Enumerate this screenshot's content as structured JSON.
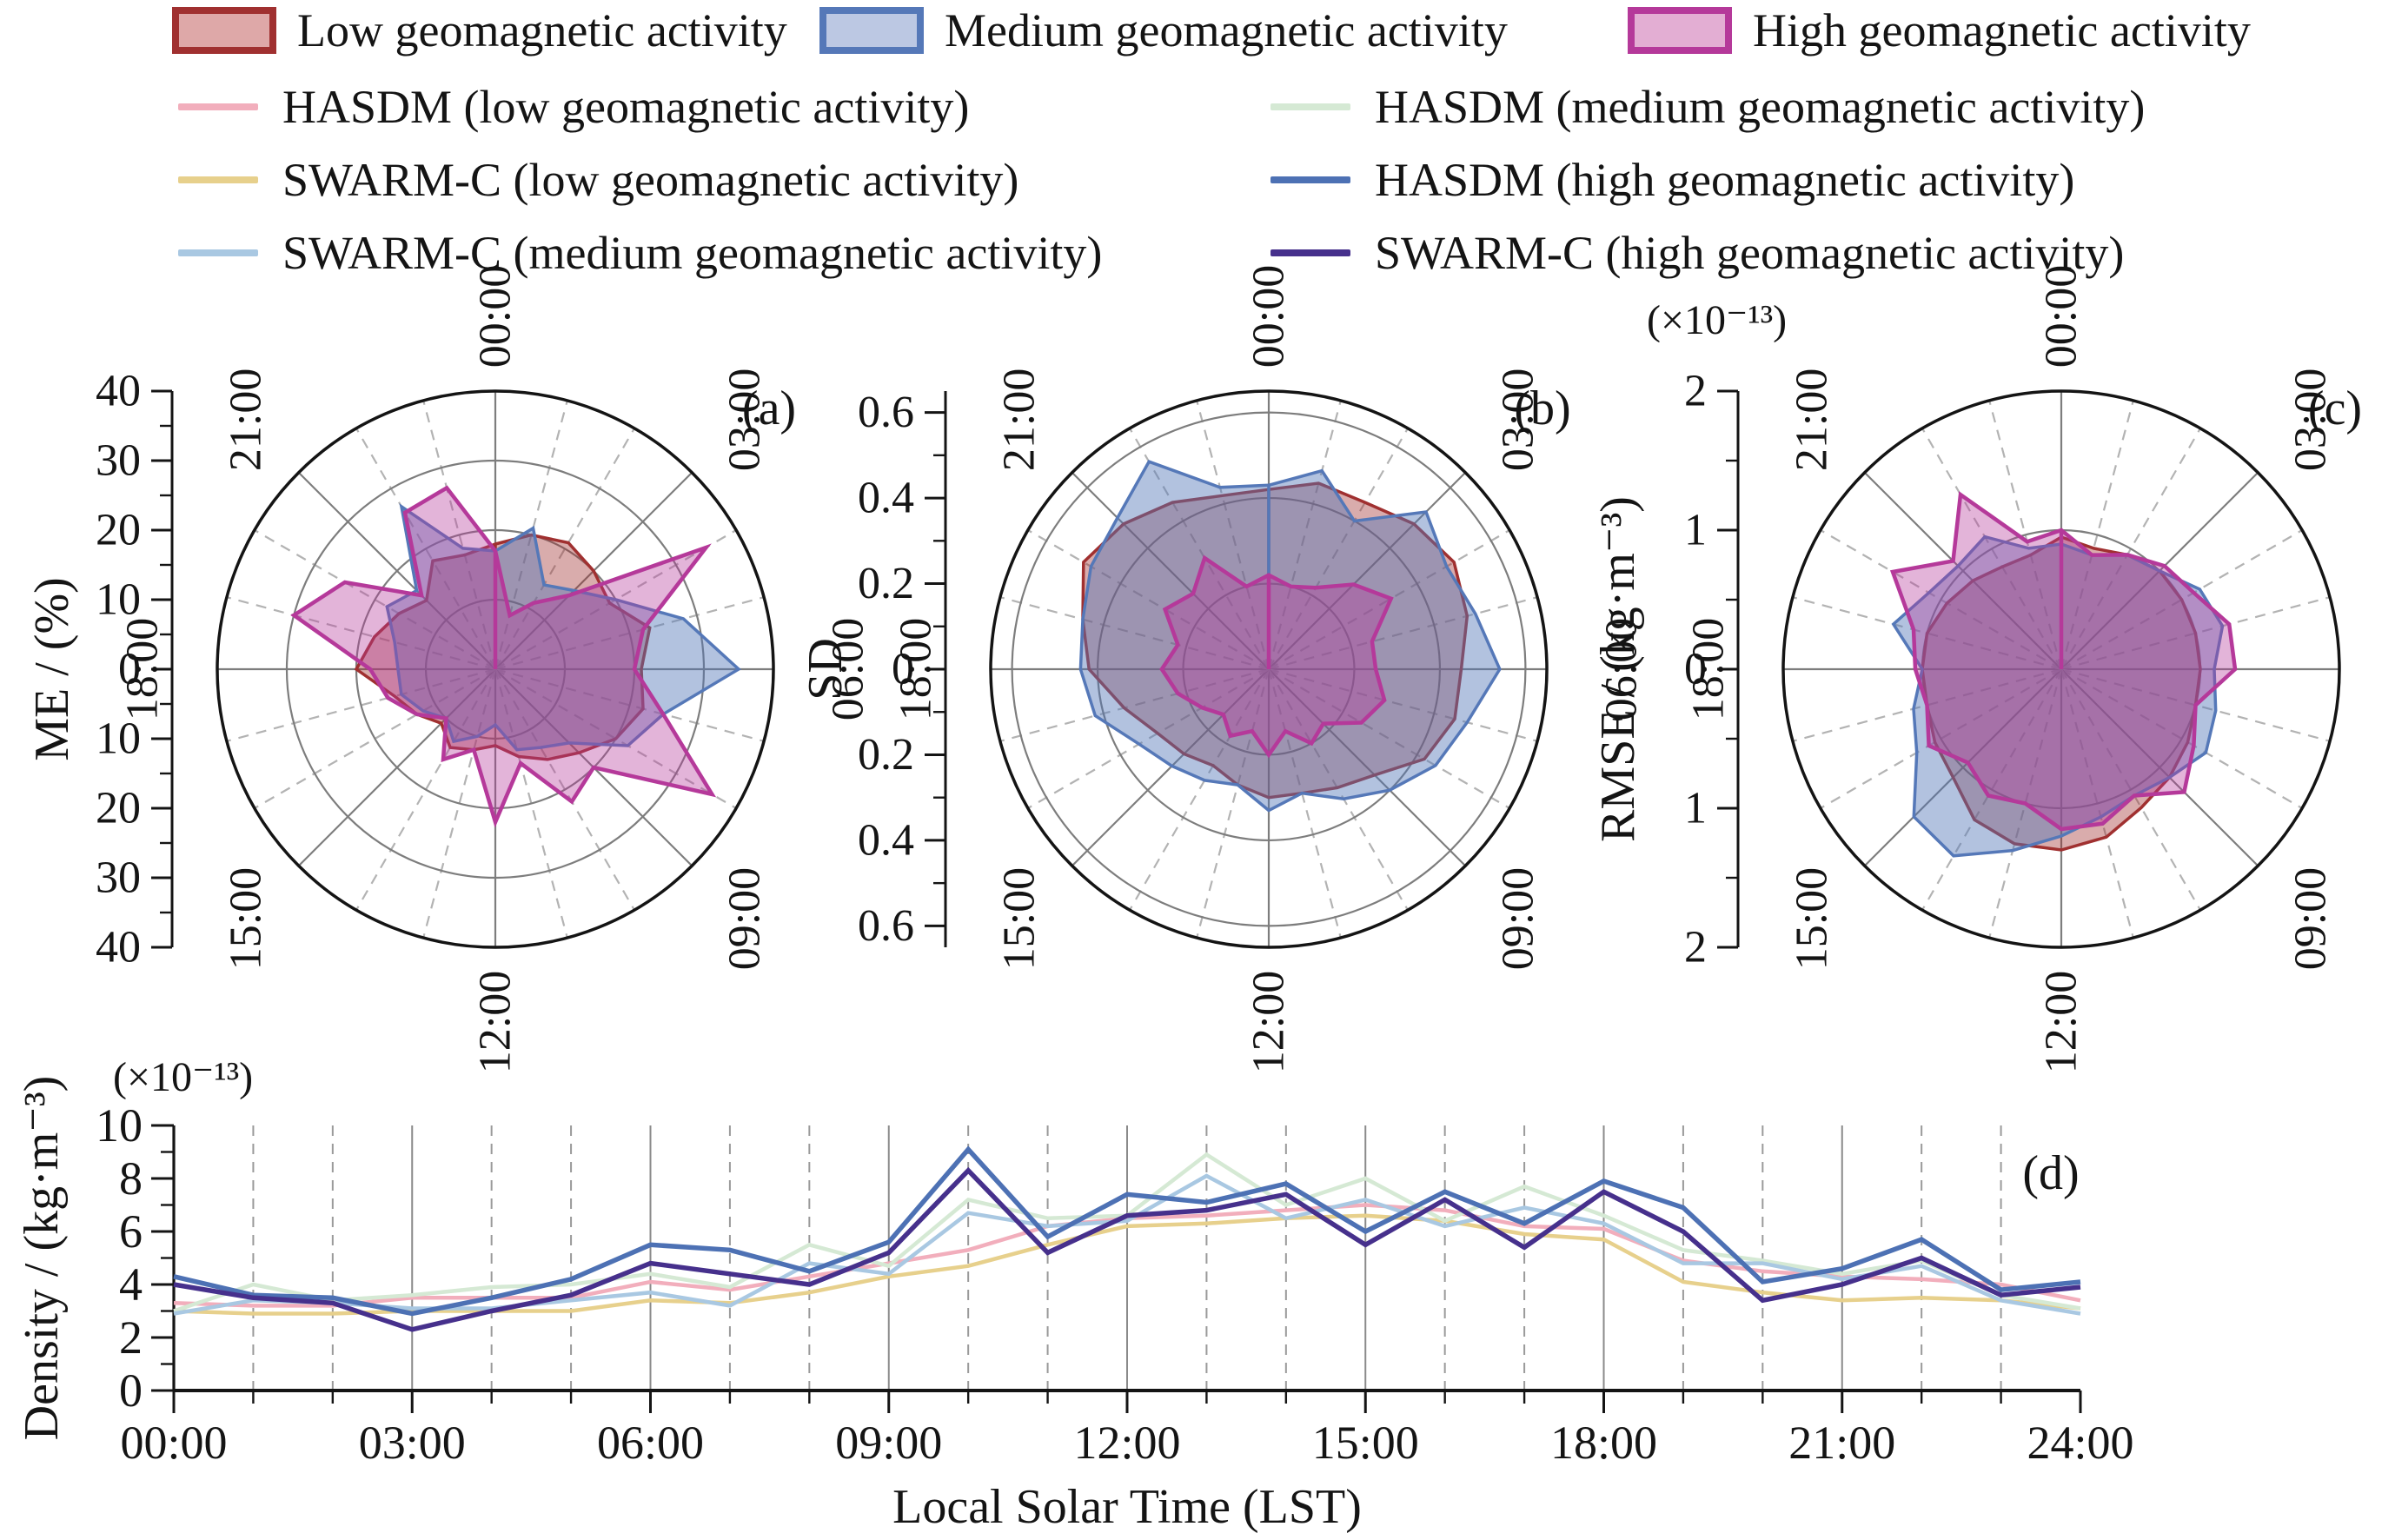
{
  "legend": {
    "patches": [
      {
        "label": "Low geomagnetic activity",
        "stroke": "#a03030",
        "fill": "#dea8a8"
      },
      {
        "label": "Medium geomagnetic activity",
        "stroke": "#5578b8",
        "fill": "#bcc8e3"
      },
      {
        "label": "High geomagnetic activity",
        "stroke": "#b5399a",
        "fill": "#e3aed3"
      }
    ],
    "lines": [
      {
        "label": "HASDM (low geomagnetic activity)",
        "color": "#f2aebc"
      },
      {
        "label": "HASDM (medium geomagnetic activity)",
        "color": "#d5e9d4"
      },
      {
        "label": "SWARM-C (low geomagnetic activity)",
        "color": "#e7d08c"
      },
      {
        "label": "HASDM (high geomagnetic activity)",
        "color": "#4d71b4"
      },
      {
        "label": "SWARM-C (medium geomagnetic activity)",
        "color": "#a9c8e2"
      },
      {
        "label": "SWARM-C (high geomagnetic activity)",
        "color": "#46308c"
      }
    ]
  },
  "chart_data": [
    {
      "id": "a",
      "type": "radar",
      "panel_label": "(a)",
      "ylabel": "ME / (%)",
      "outer": 40,
      "tick_labels": [
        "40",
        "30",
        "20",
        "10",
        "0",
        "10",
        "20",
        "30",
        "40"
      ],
      "tick_values": [
        40,
        30,
        20,
        10,
        0,
        -10,
        -20,
        -30,
        -40
      ],
      "circles": [
        10,
        20,
        30
      ],
      "angle_labels": [
        "00:00",
        "03:00",
        "06:00",
        "09:00",
        "12:00",
        "15:00",
        "18:00",
        "21:00"
      ],
      "grid": true,
      "series": [
        {
          "name": "Low geomagnetic activity",
          "stroke": "#a03030",
          "fill": "rgba(160,48,48,0.40)",
          "width": 3.5,
          "values": [
            18,
            20,
            21,
            20,
            19,
            23,
            21,
            22,
            20,
            17,
            15,
            13,
            11,
            12,
            13,
            11,
            13,
            15,
            20,
            18,
            16,
            14,
            18,
            17
          ]
        },
        {
          "name": "Medium geomagnetic activity",
          "stroke": "#5578b8",
          "fill": "rgba(85,120,184,0.45)",
          "width": 3.5,
          "values": [
            17,
            21,
            14,
            16,
            20,
            28,
            35,
            25,
            22,
            15,
            13,
            12,
            8,
            10,
            12,
            10,
            12,
            14,
            14,
            15,
            18,
            16,
            27,
            18
          ]
        },
        {
          "name": "High geomagnetic activity",
          "stroke": "#b5399a",
          "fill": "rgba(181,57,154,0.38)",
          "width": 4.5,
          "values": [
            17,
            8,
            11,
            15,
            35,
            22,
            20,
            25,
            36,
            20,
            22,
            14,
            22,
            12,
            15,
            10,
            13,
            16,
            18,
            30,
            25,
            15,
            26,
            27
          ]
        }
      ]
    },
    {
      "id": "b",
      "type": "radar",
      "panel_label": "(b)",
      "ylabel": "SD",
      "outer": 0.65,
      "tick_labels": [
        "0.6",
        "0.4",
        "0.2",
        "0",
        "0.2",
        "0.4",
        "0.6"
      ],
      "tick_values": [
        0.6,
        0.4,
        0.2,
        0,
        -0.2,
        -0.4,
        -0.6
      ],
      "circles": [
        0.2,
        0.4,
        0.6
      ],
      "angle_labels": [
        "00:00",
        "03:00",
        "06:00",
        "09:00",
        "12:00",
        "15:00",
        "18:00",
        "21:00"
      ],
      "grid": true,
      "series": [
        {
          "name": "Low geomagnetic activity",
          "stroke": "#a03030",
          "fill": "rgba(160,48,48,0.40)",
          "width": 3.5,
          "values": [
            0.42,
            0.45,
            0.45,
            0.48,
            0.5,
            0.48,
            0.45,
            0.45,
            0.42,
            0.35,
            0.32,
            0.3,
            0.3,
            0.28,
            0.26,
            0.28,
            0.3,
            0.35,
            0.42,
            0.45,
            0.5,
            0.48,
            0.45,
            0.42
          ]
        },
        {
          "name": "Medium geomagnetic activity",
          "stroke": "#5578b8",
          "fill": "rgba(85,120,184,0.45)",
          "width": 3.5,
          "values": [
            0.43,
            0.48,
            0.4,
            0.52,
            0.48,
            0.5,
            0.54,
            0.48,
            0.45,
            0.4,
            0.35,
            0.3,
            0.33,
            0.28,
            0.3,
            0.32,
            0.35,
            0.42,
            0.44,
            0.45,
            0.48,
            0.5,
            0.56,
            0.44
          ]
        },
        {
          "name": "High geomagnetic activity",
          "stroke": "#b5399a",
          "fill": "rgba(181,57,154,0.38)",
          "width": 4.5,
          "values": [
            0.22,
            0.2,
            0.22,
            0.28,
            0.33,
            0.25,
            0.25,
            0.28,
            0.25,
            0.18,
            0.2,
            0.15,
            0.2,
            0.15,
            0.18,
            0.15,
            0.18,
            0.22,
            0.25,
            0.22,
            0.28,
            0.25,
            0.3,
            0.2
          ]
        }
      ]
    },
    {
      "id": "c",
      "type": "radar",
      "panel_label": "(c)",
      "ylabel": "RMSE / (kg·m⁻³)",
      "exp_label": "(×10⁻¹³)",
      "outer": 2,
      "tick_labels": [
        "2",
        "1",
        "0",
        "1",
        "2"
      ],
      "tick_values": [
        2,
        1,
        0,
        -1,
        -2
      ],
      "circles": [
        1
      ],
      "angle_labels": [
        "00:00",
        "03:00",
        "06:00",
        "09:00",
        "12:00",
        "15:00",
        "18:00",
        "21:00"
      ],
      "grid": true,
      "series": [
        {
          "name": "Low geomagnetic activity",
          "stroke": "#a03030",
          "fill": "rgba(160,48,48,0.40)",
          "width": 3.5,
          "values": [
            0.95,
            0.9,
            0.95,
            1.0,
            1.0,
            1.0,
            1.0,
            1.0,
            1.05,
            1.1,
            1.15,
            1.25,
            1.3,
            1.3,
            1.25,
            1.1,
            1.05,
            1.0,
            1.0,
            1.0,
            0.95,
            0.9,
            0.85,
            0.85
          ]
        },
        {
          "name": "Medium geomagnetic activity",
          "stroke": "#5578b8",
          "fill": "rgba(85,120,184,0.45)",
          "width": 3.5,
          "values": [
            0.9,
            0.85,
            0.95,
            1.0,
            1.15,
            1.2,
            1.1,
            1.15,
            1.2,
            1.1,
            1.05,
            1.1,
            1.2,
            1.35,
            1.55,
            1.5,
            1.2,
            1.1,
            1.0,
            1.25,
            1.1,
            1.05,
            1.1,
            0.9
          ]
        },
        {
          "name": "High geomagnetic activity",
          "stroke": "#b5399a",
          "fill": "rgba(181,57,154,0.38)",
          "width": 4.5,
          "values": [
            1.0,
            0.85,
            0.95,
            1.05,
            1.1,
            1.25,
            1.25,
            1.0,
            1.1,
            1.25,
            1.05,
            1.15,
            1.15,
            1.0,
            1.05,
            0.95,
            1.1,
            1.0,
            1.05,
            1.1,
            1.4,
            1.1,
            1.45,
            0.95
          ]
        }
      ]
    },
    {
      "id": "d",
      "type": "line",
      "panel_label": "(d)",
      "ylabel": "Density / (kg·m⁻³)",
      "exp_label": "(×10⁻¹³)",
      "xlabel": "Local Solar Time (LST)",
      "x_hours": 24,
      "x_tick_labels": [
        "00:00",
        "03:00",
        "06:00",
        "09:00",
        "12:00",
        "15:00",
        "18:00",
        "21:00",
        "24:00"
      ],
      "y_tick_labels": [
        "0",
        "2",
        "4",
        "6",
        "8",
        "10"
      ],
      "ylim": [
        0,
        10
      ],
      "grid": true,
      "series": [
        {
          "name": "HASDM (low geomagnetic activity)",
          "color": "#f2aebc",
          "width": 4.5,
          "values": [
            3.3,
            3.2,
            3.2,
            3.5,
            3.5,
            3.5,
            4.1,
            3.8,
            4.3,
            4.8,
            5.3,
            6.2,
            6.5,
            6.6,
            6.8,
            7.0,
            6.8,
            6.2,
            6.1,
            4.9,
            4.5,
            4.3,
            4.2,
            4.0,
            3.4
          ]
        },
        {
          "name": "SWARM-C (low geomagnetic activity)",
          "color": "#e7d08c",
          "width": 4.5,
          "values": [
            3.0,
            2.9,
            2.9,
            3.0,
            3.0,
            3.0,
            3.4,
            3.3,
            3.7,
            4.3,
            4.7,
            5.5,
            6.2,
            6.3,
            6.5,
            6.6,
            6.4,
            5.9,
            5.7,
            4.1,
            3.7,
            3.4,
            3.5,
            3.4,
            3.1
          ]
        },
        {
          "name": "HASDM (medium geomagnetic activity)",
          "color": "#d5e9d4",
          "width": 4.5,
          "values": [
            3.0,
            4.0,
            3.4,
            3.6,
            3.9,
            4.0,
            4.4,
            3.9,
            5.5,
            4.7,
            7.2,
            6.5,
            6.6,
            8.9,
            7.0,
            8.0,
            6.4,
            7.7,
            6.6,
            5.3,
            4.9,
            4.4,
            4.9,
            3.6,
            3.1
          ]
        },
        {
          "name": "SWARM-C (medium geomagnetic activity)",
          "color": "#a9c8e2",
          "width": 4.5,
          "values": [
            2.9,
            3.4,
            3.3,
            3.1,
            3.1,
            3.4,
            3.7,
            3.2,
            4.8,
            4.4,
            6.7,
            6.2,
            6.4,
            8.1,
            6.5,
            7.2,
            6.2,
            6.9,
            6.3,
            4.8,
            4.8,
            4.2,
            4.7,
            3.4,
            2.9
          ]
        },
        {
          "name": "HASDM (high geomagnetic activity)",
          "color": "#4d71b4",
          "width": 5.5,
          "values": [
            4.3,
            3.6,
            3.5,
            2.9,
            3.5,
            4.2,
            5.5,
            5.3,
            4.5,
            5.6,
            9.1,
            5.8,
            7.4,
            7.1,
            7.8,
            6.0,
            7.5,
            6.3,
            7.9,
            6.9,
            4.1,
            4.6,
            5.7,
            3.8,
            4.1
          ]
        },
        {
          "name": "SWARM-C (high geomagnetic activity)",
          "color": "#46308c",
          "width": 5.5,
          "values": [
            4.0,
            3.5,
            3.3,
            2.3,
            3.0,
            3.6,
            4.8,
            4.4,
            4.0,
            5.2,
            8.3,
            5.2,
            6.6,
            6.8,
            7.4,
            5.5,
            7.2,
            5.4,
            7.5,
            6.0,
            3.4,
            4.0,
            5.0,
            3.6,
            3.9
          ]
        }
      ]
    }
  ]
}
